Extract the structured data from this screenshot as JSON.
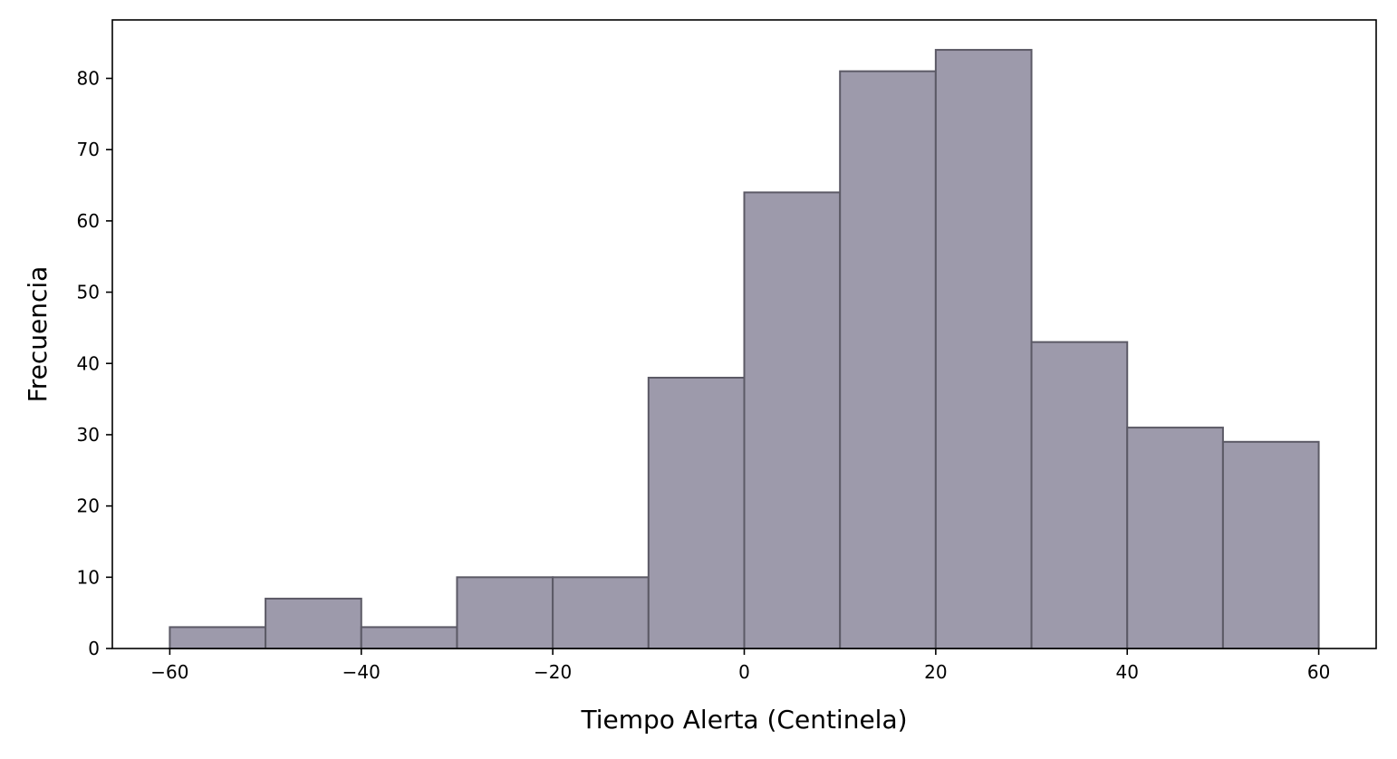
{
  "chart_data": {
    "type": "bar",
    "subtype": "histogram",
    "bins": [
      {
        "start": -60,
        "end": -50,
        "count": 3
      },
      {
        "start": -50,
        "end": -40,
        "count": 7
      },
      {
        "start": -40,
        "end": -30,
        "count": 3
      },
      {
        "start": -30,
        "end": -20,
        "count": 10
      },
      {
        "start": -20,
        "end": -10,
        "count": 10
      },
      {
        "start": -10,
        "end": 0,
        "count": 38
      },
      {
        "start": 0,
        "end": 10,
        "count": 64
      },
      {
        "start": 10,
        "end": 20,
        "count": 81
      },
      {
        "start": 20,
        "end": 30,
        "count": 84
      },
      {
        "start": 30,
        "end": 40,
        "count": 43
      },
      {
        "start": 40,
        "end": 50,
        "count": 31
      },
      {
        "start": 50,
        "end": 60,
        "count": 29
      }
    ],
    "title": "",
    "xlabel": "Tiempo Alerta (Centinela)",
    "ylabel": "Frecuencia",
    "xlim": [
      -66,
      66
    ],
    "ylim": [
      0,
      88.2
    ],
    "xticks": [
      -60,
      -40,
      -20,
      0,
      20,
      40,
      60
    ],
    "xtick_labels": [
      "−60",
      "−40",
      "−20",
      "0",
      "20",
      "40",
      "60"
    ],
    "yticks": [
      0,
      10,
      20,
      30,
      40,
      50,
      60,
      70,
      80
    ],
    "ytick_labels": [
      "0",
      "10",
      "20",
      "30",
      "40",
      "50",
      "60",
      "70",
      "80"
    ],
    "grid": false,
    "bar_fill": "#9d9aab",
    "bar_edge": "#5c5a66"
  }
}
